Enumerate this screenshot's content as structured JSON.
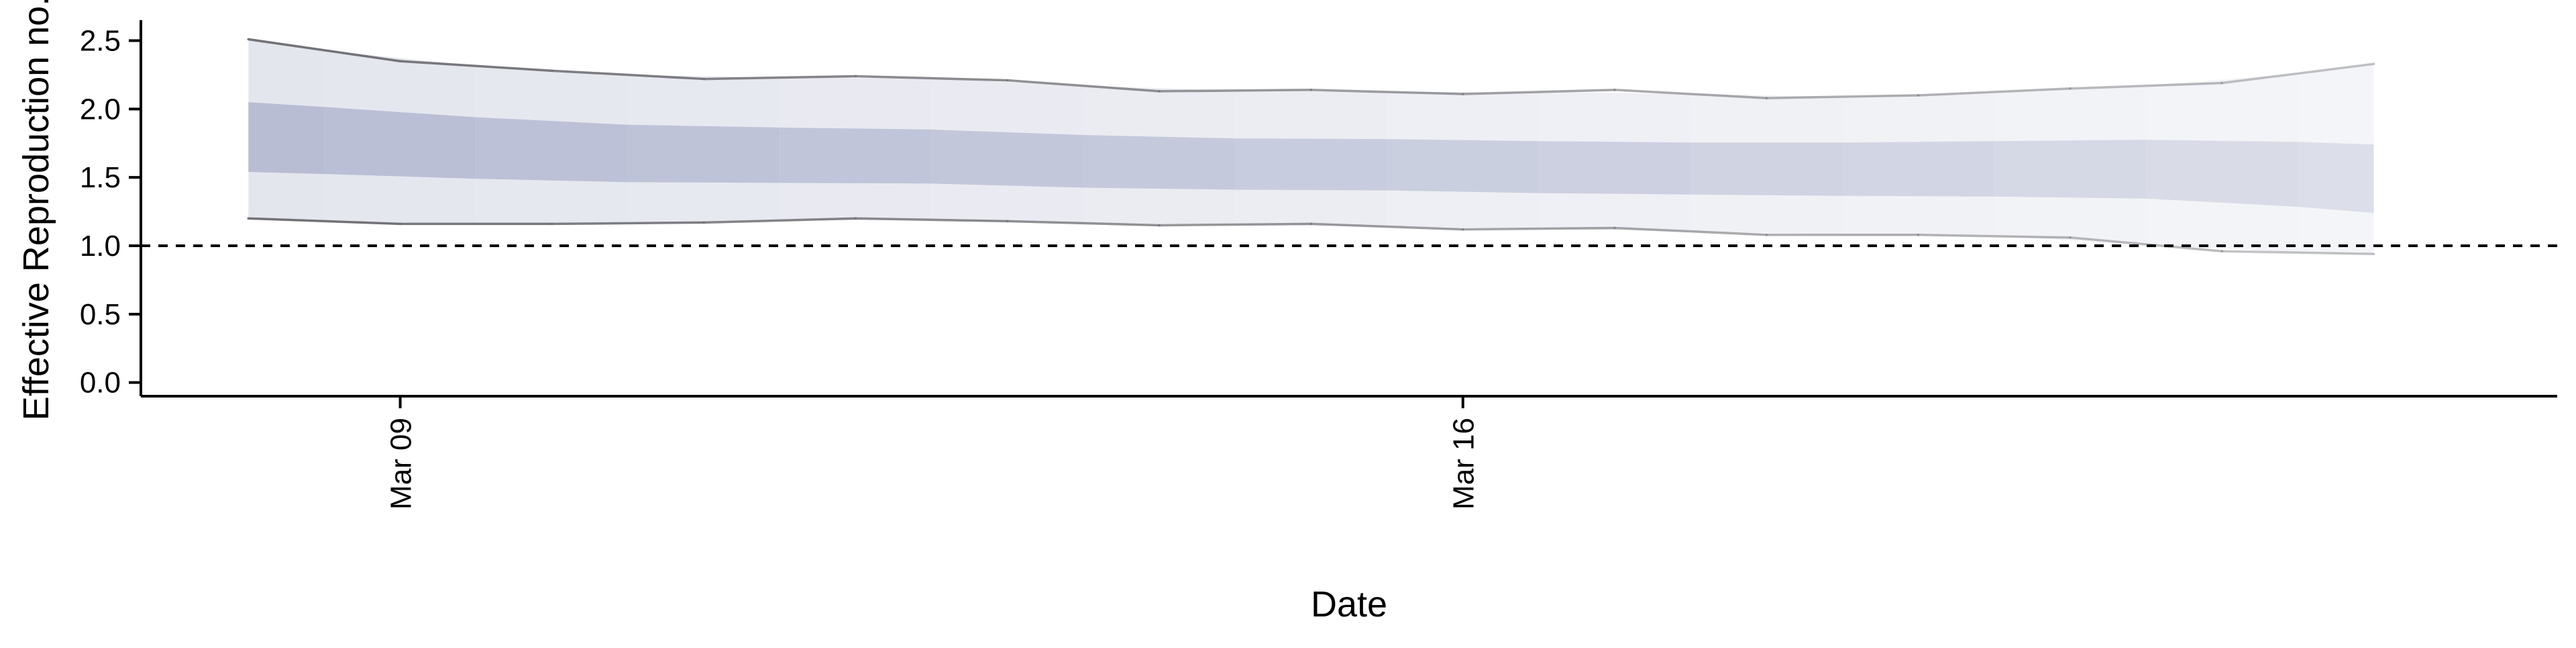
{
  "chart_data": {
    "type": "area",
    "title": "",
    "xlabel": "Date",
    "ylabel": "Effective Reproduction no.",
    "x": [
      "Mar 08",
      "Mar 09",
      "Mar 10",
      "Mar 11",
      "Mar 12",
      "Mar 13",
      "Mar 14",
      "Mar 15",
      "Mar 16",
      "Mar 17",
      "Mar 18",
      "Mar 19",
      "Mar 20",
      "Mar 21",
      "Mar 22"
    ],
    "x_ticks": [
      {
        "date": "Mar 09",
        "label": "Mar 09"
      },
      {
        "date": "Mar 16",
        "label": "Mar 16"
      }
    ],
    "xlim": [
      "Mar 07 07:00",
      "Mar 23 05:00"
    ],
    "ylim": [
      -0.1,
      2.65
    ],
    "y_ticks": [
      0.0,
      0.5,
      1.0,
      1.5,
      2.0,
      2.5
    ],
    "y_tick_labels": [
      "0.0",
      "0.5",
      "1.0",
      "1.5",
      "2.0",
      "2.5"
    ],
    "series": [
      {
        "band": "outer",
        "lower": [
          1.2,
          1.16,
          1.16,
          1.17,
          1.2,
          1.18,
          1.15,
          1.16,
          1.12,
          1.13,
          1.08,
          1.08,
          1.06,
          0.96,
          0.94
        ],
        "upper": [
          2.51,
          2.35,
          2.28,
          2.22,
          2.24,
          2.21,
          2.13,
          2.14,
          2.11,
          2.14,
          2.08,
          2.1,
          2.15,
          2.19,
          2.33
        ]
      },
      {
        "band": "inner",
        "lower": [
          1.54,
          1.51,
          1.47,
          1.46,
          1.46,
          1.45,
          1.4,
          1.42,
          1.39,
          1.38,
          1.37,
          1.36,
          1.36,
          1.33,
          1.24
        ],
        "upper": [
          2.05,
          1.98,
          1.9,
          1.87,
          1.86,
          1.84,
          1.78,
          1.79,
          1.77,
          1.76,
          1.75,
          1.76,
          1.77,
          1.78,
          1.74
        ]
      }
    ],
    "reference_line": {
      "y": 1.0,
      "style": "dashed"
    },
    "colors": {
      "outer_band": "#e4e6ee",
      "inner_band": "#b8bdd4",
      "bound_line": "#6f6f74",
      "reference": "#000000"
    },
    "band_fade": "opacity decreases toward later dates",
    "grid": false,
    "legend": "none"
  }
}
